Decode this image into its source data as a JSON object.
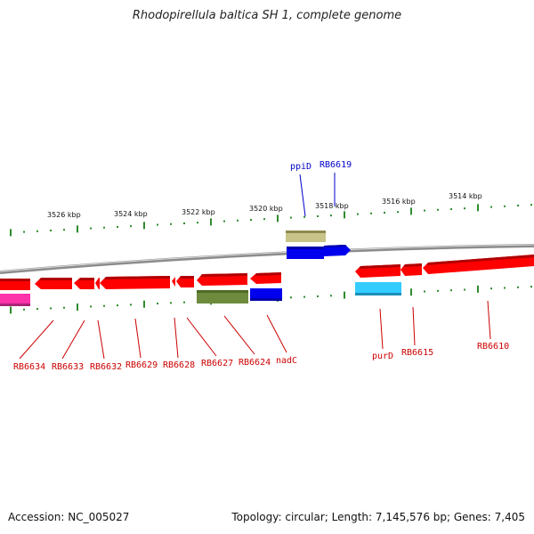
{
  "title": "Rhodopirellula baltica SH 1, complete genome",
  "footer": {
    "accession": "Accession: NC_005027",
    "topology": "Topology: circular; Length: 7,145,576 bp; Genes: 7,405"
  },
  "colors": {
    "backbone": "#8c8c8c",
    "tick": "#2e8b2e",
    "gene_label_strand_minus": "#cc0000",
    "gene_label_strand_plus": "#0000cc",
    "forward_cds": "#ff0000",
    "reverse_cds": "#ff0000",
    "blue_feature": "#0000ee",
    "cyan_feature": "#33ccff",
    "khaki_feature": "#c8c489",
    "olive_feature": "#6e8b3d",
    "magenta_feature": "#ff33aa"
  },
  "scale_labels": [
    "3526 kbp",
    "3524 kbp",
    "3522 kbp",
    "3520 kbp",
    "3518 kbp",
    "3516 kbp",
    "3514 kbp"
  ],
  "gene_labels_bottom": [
    "RB6634",
    "RB6633",
    "RB6632",
    "RB6629",
    "RB6628",
    "RB6627",
    "RB6624",
    "nadC",
    "purD",
    "RB6615",
    "RB6610"
  ],
  "gene_labels_top": [
    "ppiD",
    "RB6619"
  ]
}
